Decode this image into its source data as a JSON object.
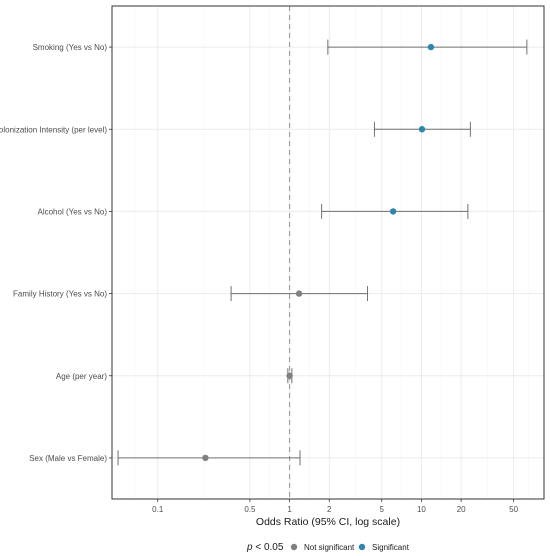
{
  "chart_data": {
    "type": "scatter",
    "subtype": "forest-plot",
    "x_scale": "log",
    "xlim": [
      0.045,
      85
    ],
    "xlabel": "Odds Ratio (95% CI, log scale)",
    "reference_line": 1,
    "x_ticks": [
      {
        "value": 0.1,
        "label": "0.1"
      },
      {
        "value": 0.5,
        "label": "0.5"
      },
      {
        "value": 1,
        "label": "1"
      },
      {
        "value": 2,
        "label": "2"
      },
      {
        "value": 5,
        "label": "5"
      },
      {
        "value": 10,
        "label": "10"
      },
      {
        "value": 20,
        "label": "20"
      },
      {
        "value": 50,
        "label": "50"
      }
    ],
    "grid": true,
    "categories": [
      "Smoking (Yes vs No)",
      "Colonization Intensity (per level)",
      "Alcohol (Yes vs No)",
      "Family History (Yes vs No)",
      "Age (per year)",
      "Sex (Male vs Female)"
    ],
    "rows": [
      {
        "label": "Smoking (Yes vs No)",
        "or": 11.8,
        "lower": 1.95,
        "upper": 63,
        "significant": true
      },
      {
        "label": "Colonization Intensity (per level)",
        "or": 10.1,
        "lower": 4.4,
        "upper": 23.5,
        "significant": true
      },
      {
        "label": "Alcohol (Yes vs No)",
        "or": 6.1,
        "lower": 1.75,
        "upper": 22.5,
        "significant": true
      },
      {
        "label": "Family History (Yes vs No)",
        "or": 1.18,
        "lower": 0.36,
        "upper": 3.9,
        "significant": false
      },
      {
        "label": "Age (per year)",
        "or": 1.0,
        "lower": 0.97,
        "upper": 1.04,
        "significant": false
      },
      {
        "label": "Sex (Male vs Female)",
        "or": 0.23,
        "lower": 0.05,
        "upper": 1.2,
        "significant": false
      }
    ],
    "legend": {
      "position": "bottom",
      "title": "p < 0.05",
      "title_italic_part": "p",
      "title_rest": " < 0.05",
      "entries": [
        {
          "name": "Not significant",
          "color": "#808080"
        },
        {
          "name": "Significant",
          "color": "#2E86AB"
        }
      ]
    },
    "colors": {
      "significant": "#2E86AB",
      "not_significant": "#808080",
      "errorbar": "#707070",
      "reference_line": "#999999",
      "grid": "#ebebeb",
      "panel_border": "#333333"
    }
  }
}
